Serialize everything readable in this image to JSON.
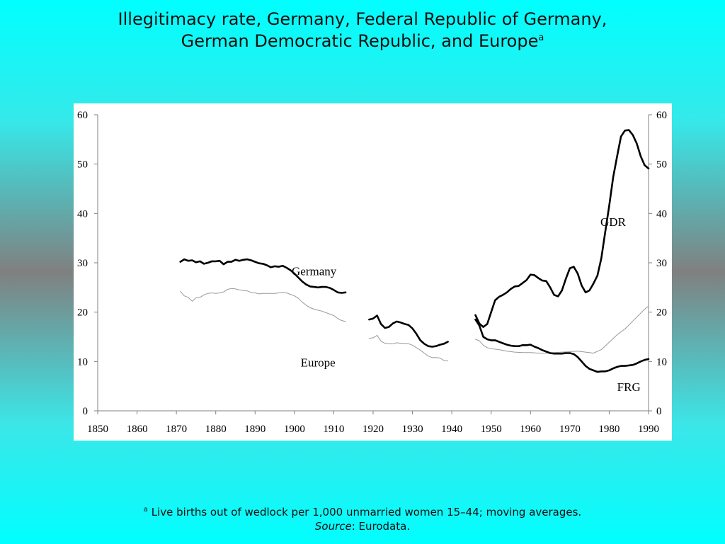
{
  "title": {
    "line1": "Illegitimacy rate, Germany, Federal Republic of Germany,",
    "line2": "German Democratic Republic, and Europe",
    "marker": "a"
  },
  "footnote": {
    "marker": "a",
    "text": "Live births out of wedlock per 1,000 unmarried women 15–44; moving averages.",
    "source_label": "Source",
    "source_text": ": Eurodata."
  },
  "chart_data": {
    "type": "line",
    "title": "Illegitimacy rate, Germany, Federal Republic of Germany, German Democratic Republic, and Europe",
    "xlim": [
      1850,
      1990
    ],
    "ylim": [
      0,
      60
    ],
    "x_ticks": [
      1850,
      1860,
      1870,
      1880,
      1890,
      1900,
      1910,
      1920,
      1930,
      1940,
      1950,
      1960,
      1970,
      1980,
      1990
    ],
    "y_ticks": [
      0,
      10,
      20,
      30,
      40,
      50,
      60
    ],
    "y_axis_right": true,
    "grid": false,
    "colors": {
      "bold_series": "#000000",
      "thin_series": "#999999"
    },
    "series": [
      {
        "name": "Germany",
        "style": "bold",
        "x": [
          1871,
          1872,
          1873,
          1874,
          1875,
          1876,
          1877,
          1878,
          1879,
          1880,
          1881,
          1882,
          1883,
          1884,
          1885,
          1886,
          1887,
          1888,
          1889,
          1890,
          1891,
          1892,
          1893,
          1894,
          1895,
          1896,
          1897,
          1898,
          1899,
          1900,
          1901,
          1902,
          1903,
          1904,
          1905,
          1906,
          1907,
          1908,
          1909,
          1910,
          1911,
          1912,
          1913
        ],
        "y": [
          30.2,
          30.7,
          30.4,
          30.5,
          30.1,
          30.3,
          29.8,
          30.0,
          30.3,
          30.3,
          30.4,
          29.7,
          30.2,
          30.2,
          30.6,
          30.4,
          30.6,
          30.7,
          30.5,
          30.2,
          29.9,
          29.8,
          29.5,
          29.1,
          29.3,
          29.2,
          29.4,
          29.0,
          28.5,
          27.8,
          27.0,
          26.2,
          25.6,
          25.2,
          25.1,
          25.0,
          25.1,
          25.1,
          24.9,
          24.5,
          24.0,
          23.9,
          24.0
        ]
      },
      {
        "name": "Germany",
        "style": "bold",
        "x": [
          1919,
          1920,
          1921,
          1922,
          1923,
          1924,
          1925,
          1926,
          1927,
          1928,
          1929,
          1930,
          1931,
          1932,
          1933,
          1934,
          1935,
          1936,
          1937,
          1938,
          1939
        ],
        "y": [
          18.5,
          18.7,
          19.3,
          17.6,
          16.8,
          17.0,
          17.7,
          18.1,
          17.9,
          17.6,
          17.4,
          16.7,
          15.6,
          14.3,
          13.6,
          13.1,
          13.0,
          13.1,
          13.4,
          13.6,
          14.0
        ]
      },
      {
        "name": "Europe",
        "style": "thin",
        "x": [
          1871,
          1872,
          1873,
          1874,
          1875,
          1876,
          1877,
          1878,
          1879,
          1880,
          1881,
          1882,
          1883,
          1884,
          1885,
          1886,
          1887,
          1888,
          1889,
          1890,
          1891,
          1892,
          1893,
          1894,
          1895,
          1896,
          1897,
          1898,
          1899,
          1900,
          1901,
          1902,
          1903,
          1904,
          1905,
          1906,
          1907,
          1908,
          1909,
          1910,
          1911,
          1912,
          1913
        ],
        "y": [
          24.2,
          23.3,
          23.0,
          22.2,
          22.9,
          23.0,
          23.5,
          23.8,
          23.9,
          23.8,
          23.9,
          24.1,
          24.6,
          24.8,
          24.7,
          24.5,
          24.4,
          24.3,
          24.0,
          23.9,
          23.7,
          23.8,
          23.8,
          23.8,
          23.8,
          23.9,
          24.0,
          23.9,
          23.6,
          23.3,
          22.8,
          22.0,
          21.4,
          20.9,
          20.6,
          20.4,
          20.2,
          19.9,
          19.6,
          19.3,
          18.7,
          18.3,
          18.1
        ]
      },
      {
        "name": "Europe",
        "style": "thin",
        "x": [
          1919,
          1920,
          1921,
          1922,
          1923,
          1924,
          1925,
          1926,
          1927,
          1928,
          1929,
          1930,
          1931,
          1932,
          1933,
          1934,
          1935,
          1936,
          1937,
          1938,
          1939
        ],
        "y": [
          14.7,
          14.8,
          15.3,
          14.1,
          13.7,
          13.6,
          13.6,
          13.8,
          13.7,
          13.7,
          13.6,
          13.3,
          12.8,
          12.3,
          11.7,
          11.1,
          10.8,
          10.8,
          10.7,
          10.2,
          10.1
        ]
      },
      {
        "name": "Europe",
        "style": "thin",
        "x": [
          1946,
          1947,
          1948,
          1949,
          1950,
          1952,
          1954,
          1956,
          1958,
          1960,
          1962,
          1964,
          1966,
          1968,
          1970,
          1972,
          1974,
          1976,
          1978,
          1980,
          1982,
          1984,
          1986,
          1988,
          1989,
          1990
        ],
        "y": [
          14.5,
          14.2,
          13.3,
          12.8,
          12.6,
          12.4,
          12.1,
          11.9,
          11.8,
          11.8,
          11.7,
          11.7,
          11.8,
          11.9,
          12.0,
          12.1,
          11.9,
          11.7,
          12.4,
          13.9,
          15.4,
          16.6,
          18.2,
          19.8,
          20.6,
          21.2
        ]
      },
      {
        "name": "GDR",
        "style": "bold",
        "x": [
          1946,
          1947,
          1948,
          1949,
          1950,
          1951,
          1952,
          1953,
          1954,
          1955,
          1956,
          1957,
          1958,
          1959,
          1960,
          1961,
          1962,
          1963,
          1964,
          1965,
          1966,
          1967,
          1968,
          1969,
          1970,
          1971,
          1972,
          1973,
          1974,
          1975,
          1976,
          1977,
          1978,
          1979,
          1980,
          1981,
          1982,
          1983,
          1984,
          1985,
          1986,
          1987,
          1988,
          1989,
          1990
        ],
        "y": [
          19.4,
          17.7,
          17.0,
          17.6,
          20.0,
          22.4,
          23.1,
          23.5,
          24.0,
          24.7,
          25.2,
          25.3,
          25.9,
          26.5,
          27.6,
          27.5,
          26.9,
          26.4,
          26.3,
          25.0,
          23.5,
          23.2,
          24.4,
          26.8,
          28.9,
          29.2,
          27.8,
          25.4,
          24.0,
          24.4,
          25.8,
          27.4,
          30.9,
          36.3,
          41.5,
          47.3,
          51.5,
          55.6,
          56.8,
          56.9,
          55.9,
          54.2,
          51.6,
          49.8,
          49.1
        ]
      },
      {
        "name": "FRG",
        "style": "bold",
        "x": [
          1946,
          1947,
          1948,
          1949,
          1950,
          1951,
          1952,
          1953,
          1954,
          1955,
          1956,
          1957,
          1958,
          1959,
          1960,
          1961,
          1962,
          1963,
          1964,
          1965,
          1966,
          1967,
          1968,
          1969,
          1970,
          1971,
          1972,
          1973,
          1974,
          1975,
          1976,
          1977,
          1978,
          1979,
          1980,
          1981,
          1982,
          1983,
          1984,
          1985,
          1986,
          1987,
          1988,
          1989,
          1990
        ],
        "y": [
          18.5,
          17.3,
          15.0,
          14.5,
          14.3,
          14.3,
          14.0,
          13.7,
          13.4,
          13.2,
          13.1,
          13.1,
          13.3,
          13.3,
          13.4,
          13.0,
          12.7,
          12.3,
          12.0,
          11.7,
          11.6,
          11.6,
          11.6,
          11.7,
          11.7,
          11.5,
          10.9,
          10.0,
          9.1,
          8.5,
          8.2,
          7.9,
          8.0,
          8.0,
          8.2,
          8.6,
          8.9,
          9.1,
          9.1,
          9.2,
          9.3,
          9.6,
          10.0,
          10.3,
          10.5
        ]
      }
    ],
    "annotations": [
      {
        "text": "Germany",
        "x": 1905,
        "y": 27.5
      },
      {
        "text": "Europe",
        "x": 1906,
        "y": 9.0
      },
      {
        "text": "GDR",
        "x": 1981,
        "y": 37.5
      },
      {
        "text": "FRG",
        "x": 1985,
        "y": 4.0
      }
    ]
  }
}
